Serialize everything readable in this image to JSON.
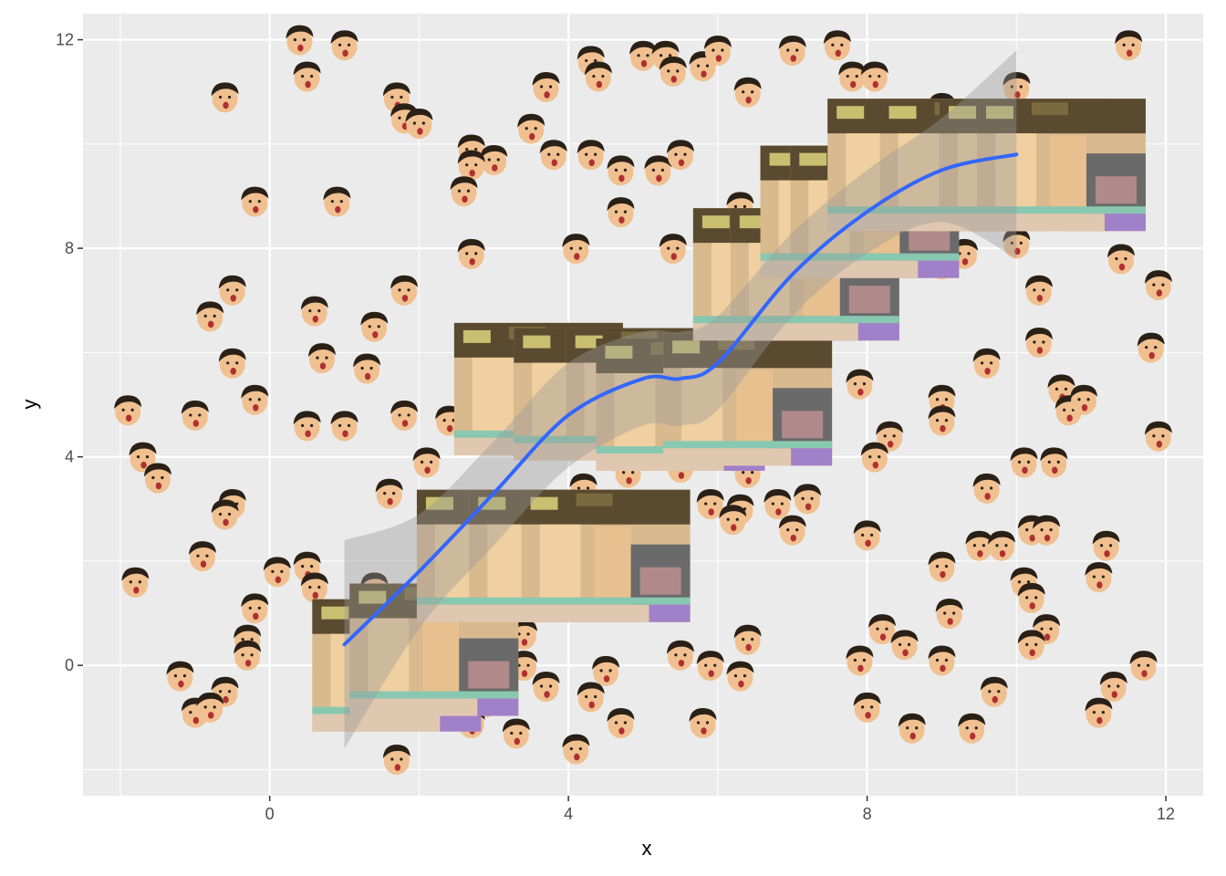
{
  "chart_data": {
    "type": "scatter",
    "title": "",
    "xlabel": "x",
    "ylabel": "y",
    "xlim": [
      -2.5,
      12.5
    ],
    "ylim": [
      -2.5,
      12.5
    ],
    "x_ticks": [
      0,
      4,
      8,
      12
    ],
    "y_ticks": [
      0,
      4,
      8,
      12
    ],
    "x_tick_labels": [
      "0",
      "4",
      "8",
      "12"
    ],
    "y_tick_labels": [
      "0",
      "4",
      "8",
      "12"
    ],
    "grid": true,
    "legend": "none",
    "marker": "face-image",
    "colors": {
      "panel": "#ebebeb",
      "grid_major": "#ffffff",
      "smooth_line": "#3366ff",
      "ribbon": "#999999",
      "skin": "#f0c090",
      "hair": "#2a2016",
      "mouth": "#b03030",
      "jersey": "#a080c8"
    },
    "points": [
      [
        0.4,
        12.0
      ],
      [
        1.0,
        11.9
      ],
      [
        0.5,
        11.3
      ],
      [
        -0.6,
        10.9
      ],
      [
        1.7,
        10.9
      ],
      [
        1.8,
        10.5
      ],
      [
        2.0,
        10.4
      ],
      [
        3.7,
        11.1
      ],
      [
        4.3,
        11.6
      ],
      [
        4.4,
        11.3
      ],
      [
        5.0,
        11.7
      ],
      [
        5.3,
        11.7
      ],
      [
        5.4,
        11.4
      ],
      [
        5.8,
        11.5
      ],
      [
        6.0,
        11.8
      ],
      [
        6.4,
        11.0
      ],
      [
        7.0,
        11.8
      ],
      [
        7.6,
        11.9
      ],
      [
        7.8,
        11.3
      ],
      [
        8.1,
        11.3
      ],
      [
        9.0,
        10.7
      ],
      [
        10.0,
        11.1
      ],
      [
        11.5,
        11.9
      ],
      [
        3.5,
        10.3
      ],
      [
        2.7,
        9.9
      ],
      [
        3.0,
        9.7
      ],
      [
        2.7,
        9.6
      ],
      [
        3.8,
        9.8
      ],
      [
        4.3,
        9.8
      ],
      [
        4.7,
        9.5
      ],
      [
        5.2,
        9.5
      ],
      [
        5.5,
        9.8
      ],
      [
        2.6,
        9.1
      ],
      [
        -0.2,
        8.9
      ],
      [
        0.9,
        8.9
      ],
      [
        4.7,
        8.7
      ],
      [
        6.3,
        8.8
      ],
      [
        7.1,
        9.0
      ],
      [
        11.2,
        9.1
      ],
      [
        11.4,
        8.8
      ],
      [
        2.7,
        7.9
      ],
      [
        4.1,
        8.0
      ],
      [
        5.4,
        8.0
      ],
      [
        6.5,
        8.3
      ],
      [
        8.3,
        8.4
      ],
      [
        9.0,
        7.7
      ],
      [
        9.3,
        7.9
      ],
      [
        10.0,
        8.1
      ],
      [
        11.4,
        7.8
      ],
      [
        11.9,
        7.3
      ],
      [
        -0.5,
        7.2
      ],
      [
        1.8,
        7.2
      ],
      [
        -0.8,
        6.7
      ],
      [
        0.6,
        6.8
      ],
      [
        1.4,
        6.5
      ],
      [
        10.3,
        7.2
      ],
      [
        10.3,
        6.2
      ],
      [
        11.8,
        6.1
      ],
      [
        0.7,
        5.9
      ],
      [
        7.0,
        6.0
      ],
      [
        -0.5,
        5.8
      ],
      [
        1.3,
        5.7
      ],
      [
        9.6,
        5.8
      ],
      [
        -0.2,
        5.1
      ],
      [
        -1.9,
        4.9
      ],
      [
        -1.0,
        4.8
      ],
      [
        0.5,
        4.6
      ],
      [
        1.0,
        4.6
      ],
      [
        1.8,
        4.8
      ],
      [
        2.4,
        4.7
      ],
      [
        2.8,
        4.5
      ],
      [
        7.3,
        4.8
      ],
      [
        7.9,
        5.4
      ],
      [
        9.0,
        5.1
      ],
      [
        9.0,
        4.7
      ],
      [
        10.6,
        5.3
      ],
      [
        10.7,
        4.9
      ],
      [
        10.9,
        5.1
      ],
      [
        11.9,
        4.4
      ],
      [
        8.3,
        4.4
      ],
      [
        -1.7,
        4.0
      ],
      [
        -1.5,
        3.6
      ],
      [
        2.1,
        3.9
      ],
      [
        8.1,
        4.0
      ],
      [
        10.1,
        3.9
      ],
      [
        10.5,
        3.9
      ],
      [
        9.6,
        3.4
      ],
      [
        1.6,
        3.3
      ],
      [
        4.2,
        3.4
      ],
      [
        4.8,
        3.7
      ],
      [
        5.5,
        3.8
      ],
      [
        6.4,
        3.7
      ],
      [
        -0.5,
        3.1
      ],
      [
        -0.6,
        2.9
      ],
      [
        4.9,
        3.0
      ],
      [
        5.9,
        3.1
      ],
      [
        6.3,
        3.0
      ],
      [
        6.2,
        2.8
      ],
      [
        6.8,
        3.1
      ],
      [
        7.2,
        3.2
      ],
      [
        4.7,
        2.7
      ],
      [
        7.0,
        2.6
      ],
      [
        8.0,
        2.5
      ],
      [
        10.2,
        2.6
      ],
      [
        10.4,
        2.6
      ],
      [
        9.5,
        2.3
      ],
      [
        9.8,
        2.3
      ],
      [
        11.2,
        2.3
      ],
      [
        -0.9,
        2.1
      ],
      [
        0.5,
        1.9
      ],
      [
        0.1,
        1.8
      ],
      [
        3.7,
        1.8
      ],
      [
        4.6,
        2.2
      ],
      [
        4.9,
        2.3
      ],
      [
        9.0,
        1.9
      ],
      [
        -1.8,
        1.6
      ],
      [
        0.6,
        1.5
      ],
      [
        1.4,
        1.5
      ],
      [
        10.1,
        1.6
      ],
      [
        10.2,
        1.3
      ],
      [
        11.1,
        1.7
      ],
      [
        9.1,
        1.0
      ],
      [
        -0.2,
        1.1
      ],
      [
        3.4,
        0.9
      ],
      [
        8.2,
        0.7
      ],
      [
        8.5,
        0.4
      ],
      [
        10.4,
        0.7
      ],
      [
        10.2,
        0.4
      ],
      [
        -0.3,
        0.5
      ],
      [
        -0.3,
        0.2
      ],
      [
        2.5,
        0.4
      ],
      [
        3.4,
        0.6
      ],
      [
        3.4,
        0.0
      ],
      [
        5.5,
        0.2
      ],
      [
        5.9,
        0.0
      ],
      [
        6.4,
        0.5
      ],
      [
        7.9,
        0.1
      ],
      [
        9.0,
        0.1
      ],
      [
        11.7,
        0.0
      ],
      [
        -1.2,
        -0.2
      ],
      [
        -0.6,
        -0.5
      ],
      [
        3.7,
        -0.4
      ],
      [
        4.5,
        -0.1
      ],
      [
        4.3,
        -0.6
      ],
      [
        6.3,
        -0.2
      ],
      [
        9.7,
        -0.5
      ],
      [
        11.3,
        -0.4
      ],
      [
        -1.0,
        -0.9
      ],
      [
        -0.8,
        -0.8
      ],
      [
        2.9,
        -0.7
      ],
      [
        2.7,
        -1.1
      ],
      [
        3.3,
        -1.3
      ],
      [
        4.7,
        -1.1
      ],
      [
        5.8,
        -1.1
      ],
      [
        8.0,
        -0.8
      ],
      [
        8.6,
        -1.2
      ],
      [
        9.4,
        -1.2
      ],
      [
        11.1,
        -0.9
      ],
      [
        4.1,
        -1.6
      ],
      [
        1.7,
        -1.8
      ]
    ],
    "large_images": [
      [
        1.7,
        0.0
      ],
      [
        2.2,
        0.3
      ],
      [
        3.1,
        2.1
      ],
      [
        3.8,
        2.1
      ],
      [
        4.5,
        2.1
      ],
      [
        3.6,
        5.3
      ],
      [
        4.4,
        5.2
      ],
      [
        5.1,
        5.2
      ],
      [
        5.5,
        5.0
      ],
      [
        6.4,
        5.1
      ],
      [
        6.8,
        7.5
      ],
      [
        7.3,
        7.5
      ],
      [
        7.7,
        8.7
      ],
      [
        8.1,
        8.7
      ],
      [
        8.6,
        9.6
      ],
      [
        9.3,
        9.6
      ],
      [
        10.1,
        9.6
      ],
      [
        10.6,
        9.6
      ]
    ],
    "smooth": {
      "x": [
        1.0,
        2.0,
        3.0,
        4.0,
        5.0,
        5.5,
        6.0,
        7.0,
        8.0,
        9.0,
        10.0
      ],
      "y": [
        0.4,
        1.8,
        3.3,
        4.8,
        5.5,
        5.5,
        5.8,
        7.5,
        8.7,
        9.5,
        9.8
      ],
      "lower": [
        -1.6,
        0.7,
        2.3,
        3.8,
        4.6,
        4.6,
        4.9,
        6.7,
        7.9,
        8.5,
        7.8
      ],
      "upper": [
        2.4,
        2.9,
        4.3,
        5.8,
        6.4,
        6.4,
        6.7,
        8.3,
        9.5,
        10.5,
        11.8
      ]
    }
  }
}
